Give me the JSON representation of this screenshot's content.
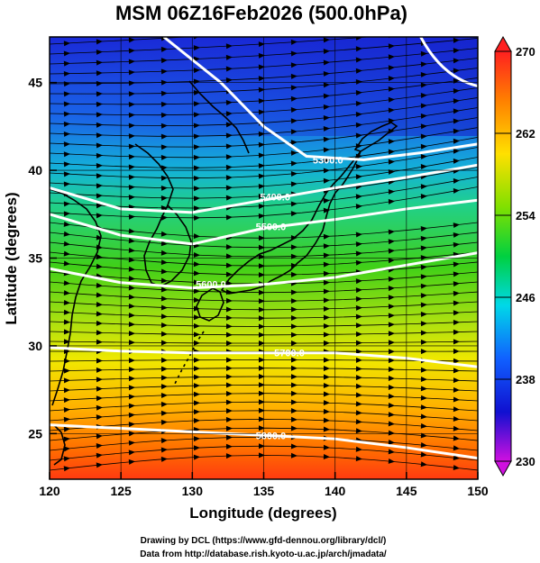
{
  "title": "MSM 06Z16Feb2026 (500.0hPa)",
  "xlabel": "Longitude (degrees)",
  "ylabel": "Latitude  (degrees)",
  "credits": [
    "Drawing by DCL (https://www.gfd-dennou.org/library/dcl/)",
    "Data from http://database.rish.kyoto-u.ac.jp/arch/jmadata/"
  ],
  "chart_data": {
    "type": "heatmap",
    "subtype": "temperature shading with geopotential height contours and wind streamlines",
    "xlim": [
      120,
      150
    ],
    "ylim": [
      22.4,
      47.6
    ],
    "x_ticks": [
      120,
      125,
      130,
      135,
      140,
      145,
      150
    ],
    "y_ticks": [
      25,
      30,
      35,
      40,
      45
    ],
    "grid": true,
    "colorbar": {
      "range": [
        230,
        270
      ],
      "tick_labels": [
        "270",
        "262",
        "254",
        "246",
        "238",
        "230"
      ],
      "colors": [
        "#ff00ff",
        "#0000ff",
        "#00ffff",
        "#00ff00",
        "#ffff00",
        "#ff0000"
      ]
    },
    "contours": [
      {
        "label": "5300.0",
        "lon": 139.5,
        "lat": 40.6
      },
      {
        "label": "5400.0",
        "lon": 135.8,
        "lat": 38.5
      },
      {
        "label": "5500.0",
        "lon": 135.5,
        "lat": 36.8
      },
      {
        "label": "5600.0",
        "lon": 131.3,
        "lat": 33.5
      },
      {
        "label": "5700.0",
        "lon": 136.8,
        "lat": 29.6
      },
      {
        "label": "5800.0",
        "lon": 135.5,
        "lat": 24.9
      }
    ]
  }
}
